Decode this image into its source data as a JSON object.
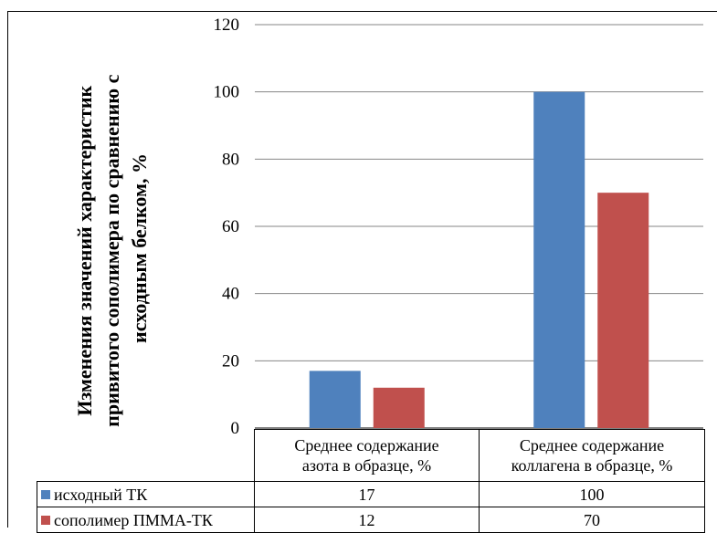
{
  "chart_data": {
    "type": "bar",
    "categories": [
      "Среднее содержание азота в образце, %",
      "Среднее содержание коллагена в образце, %"
    ],
    "category_lines": [
      [
        "Среднее содержание",
        "азота в образце, %"
      ],
      [
        "Среднее содержание",
        "коллагена в образце, %"
      ]
    ],
    "series": [
      {
        "name": "исходный ТК",
        "values": [
          17,
          100
        ],
        "value_labels": [
          "17",
          "100"
        ],
        "color": "#4f81bd"
      },
      {
        "name": "сополимер ПММА-ТК",
        "values": [
          12,
          70
        ],
        "value_labels": [
          "12",
          "70"
        ],
        "color": "#c0504d"
      }
    ],
    "ylabel": "Изменения значений характеристик привитого сополимера по сравнению с исходным белком, %",
    "ylabel_lines": [
      "Изменения значений  характеристик",
      "привитого сополимера по сравнению с",
      "исходным белком, %"
    ],
    "ylim": [
      0,
      120
    ],
    "yticks": [
      0,
      20,
      40,
      60,
      80,
      100,
      120
    ],
    "ytick_labels": [
      "0",
      "20",
      "40",
      "60",
      "80",
      "100",
      "120"
    ],
    "grid": true,
    "legend": "data-table"
  }
}
